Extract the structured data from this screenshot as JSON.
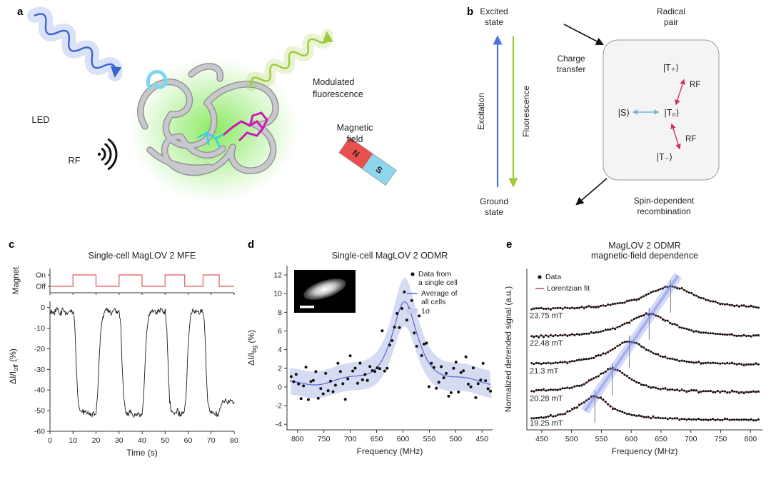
{
  "panel_labels": {
    "a": "a",
    "b": "b",
    "c": "c",
    "d": "d",
    "e": "e"
  },
  "panel_a": {
    "led_label": "LED",
    "rf_label": "RF",
    "fluorescence_label_line1": "Modulated",
    "fluorescence_label_line2": "fluorescence",
    "magnet_label_line1": "Magnetic",
    "magnet_label_line2": "field",
    "magnet_pole_n": "N",
    "magnet_pole_s": "S",
    "colors": {
      "led_arrow": "#3a63d2",
      "fluorescence_arrow": "#9ccb3b",
      "glow": "#84ea52",
      "rf_icon": "#111111",
      "magnet_n": "#e8504b",
      "magnet_s": "#8ed6ee",
      "protein_ribbon": "#c9c9cd",
      "ligand_magenta": "#c81ab4",
      "ligand_cyan": "#35cfe3"
    }
  },
  "panel_b": {
    "excited_state_line1": "Excited",
    "excited_state_line2": "state",
    "ground_state_line1": "Ground",
    "ground_state_line2": "state",
    "excitation_label": "Excitation",
    "fluorescence_label": "Fluorescence",
    "charge_transfer_line1": "Charge",
    "charge_transfer_line2": "transfer",
    "radical_pair_line1": "Radical",
    "radical_pair_line2": "pair",
    "spin_recomb_line1": "Spin-dependent",
    "spin_recomb_line2": "recombination",
    "state_t_plus": "|T₊⟩",
    "state_s": "|S⟩",
    "state_t_zero": "|T₀⟩",
    "state_t_minus": "|T₋⟩",
    "rf_label_upper": "RF",
    "rf_label_lower": "RF",
    "colors": {
      "excitation": "#4b74d8",
      "fluorescence": "#9ccb3b",
      "rf": "#cc3366",
      "singlet_triplet_arrow": "#74b6dc",
      "box_fill": "#f4f4f4",
      "box_border": "#9a9a9a"
    }
  },
  "chart_data": [
    {
      "id": "panel_c",
      "type": "line",
      "title": "Single-cell MagLOV 2 MFE",
      "xlabel": "Time (s)",
      "ylabel": "ΔI/I",
      "ylabel_sub": "off",
      "ylabel_suffix": " (%)",
      "xlim": [
        0,
        80
      ],
      "ylim": [
        -60,
        3
      ],
      "xticks": [
        0,
        10,
        20,
        30,
        40,
        50,
        60,
        70,
        80
      ],
      "yticks": [
        0,
        -10,
        -20,
        -30,
        -40,
        -50,
        -60
      ],
      "magnet": {
        "axis_label": "Magnet",
        "on_label": "On",
        "off_label": "Off",
        "on_intervals": [
          [
            10,
            20
          ],
          [
            30,
            40
          ],
          [
            50,
            58.5
          ],
          [
            66.5,
            73.5
          ]
        ],
        "color": "#e87070"
      },
      "trace": {
        "color": "#1c1c1c",
        "noise_sigma": 0.8,
        "seed": 3,
        "keypoints": [
          [
            0,
            -1.5
          ],
          [
            1.5,
            -3
          ],
          [
            3,
            -1
          ],
          [
            4.5,
            -3.5
          ],
          [
            6,
            -1.5
          ],
          [
            7.5,
            -3
          ],
          [
            9,
            -1
          ],
          [
            10,
            -1.5
          ],
          [
            10.7,
            -6
          ],
          [
            11.3,
            -24
          ],
          [
            12,
            -43
          ],
          [
            12.7,
            -49
          ],
          [
            13.5,
            -51
          ],
          [
            15,
            -50.5
          ],
          [
            16.5,
            -52
          ],
          [
            18,
            -51
          ],
          [
            19.2,
            -52.5
          ],
          [
            20,
            -51
          ],
          [
            20.7,
            -42
          ],
          [
            21.4,
            -24
          ],
          [
            22.1,
            -10
          ],
          [
            22.8,
            -4
          ],
          [
            23.6,
            -2
          ],
          [
            25,
            -1
          ],
          [
            26.5,
            -2.5
          ],
          [
            28,
            -1
          ],
          [
            29.3,
            -2.5
          ],
          [
            30,
            -2
          ],
          [
            30.7,
            -7
          ],
          [
            31.3,
            -26
          ],
          [
            32,
            -44
          ],
          [
            32.7,
            -50
          ],
          [
            33.5,
            -51.5
          ],
          [
            35,
            -51
          ],
          [
            36.5,
            -52.5
          ],
          [
            38,
            -51.5
          ],
          [
            39.2,
            -52
          ],
          [
            40,
            -51.5
          ],
          [
            40.7,
            -43
          ],
          [
            41.4,
            -25
          ],
          [
            42.1,
            -11
          ],
          [
            42.8,
            -4.5
          ],
          [
            43.6,
            -2
          ],
          [
            45,
            -1.5
          ],
          [
            46.5,
            -3
          ],
          [
            48,
            -1
          ],
          [
            49.3,
            -2
          ],
          [
            50,
            -1.5
          ],
          [
            50.7,
            -8
          ],
          [
            51.3,
            -27
          ],
          [
            52,
            -45
          ],
          [
            52.7,
            -50
          ],
          [
            53.5,
            -51
          ],
          [
            55,
            -50.5
          ],
          [
            56.5,
            -52
          ],
          [
            57.7,
            -51
          ],
          [
            58.5,
            -50.5
          ],
          [
            59.2,
            -41
          ],
          [
            59.9,
            -22
          ],
          [
            60.6,
            -9
          ],
          [
            61.3,
            -3.5
          ],
          [
            62.2,
            -2
          ],
          [
            63.5,
            -1
          ],
          [
            65,
            -2.5
          ],
          [
            66.5,
            -1.5
          ],
          [
            67.2,
            -9
          ],
          [
            67.8,
            -28
          ],
          [
            68.5,
            -45
          ],
          [
            69.2,
            -50
          ],
          [
            70,
            -51.5
          ],
          [
            71.5,
            -51
          ],
          [
            73,
            -52
          ],
          [
            73.5,
            -50.5
          ],
          [
            74.2,
            -47.5
          ],
          [
            75,
            -46
          ],
          [
            76.2,
            -45
          ],
          [
            77.4,
            -46.5
          ],
          [
            78.6,
            -45
          ],
          [
            80,
            -46
          ]
        ]
      }
    },
    {
      "id": "panel_d",
      "type": "scatter_line_band",
      "title": "Single-cell MagLOV 2 ODMR",
      "xlabel": "Frequency (MHz)",
      "ylabel": "ΔI/I",
      "ylabel_sub": "bg",
      "ylabel_suffix": " (%)",
      "x_reversed": true,
      "xlim": [
        820,
        430
      ],
      "ylim": [
        -4.6,
        13
      ],
      "xticks": [
        800,
        750,
        700,
        650,
        600,
        550,
        500,
        450
      ],
      "yticks": [
        -4,
        -2,
        0,
        2,
        4,
        6,
        8,
        10,
        12
      ],
      "mean_fit": {
        "center_mhz": 597,
        "hwhm_mhz": 30,
        "amplitude_pct": 8.7,
        "baseline_pct": 0.2
      },
      "mean_wiggle": {
        "amplitude_pct": 0.25,
        "period_mhz": 18
      },
      "sigma_band": {
        "baseline_pct": 1.4,
        "peak_extra_pct": 1.2
      },
      "scatter": {
        "n_points": 82,
        "noise_sigma_pct": 1.25,
        "seed": 11,
        "color": "#111111",
        "radius": 2
      },
      "mean_color": "#5a63d8",
      "band_color": "#c7d0ee",
      "legend": [
        {
          "label_line1": "Data from",
          "label_line2": "a single cell",
          "marker": "dot"
        },
        {
          "label_line1": "Average of",
          "label_line2": "all cells",
          "marker": "line"
        },
        {
          "label_line1": "1σ",
          "label_line2": "",
          "marker": "band"
        }
      ],
      "inset": {
        "description": "fluorescence image of a single cell",
        "has_scalebar": true
      }
    },
    {
      "id": "panel_e",
      "type": "stacked_odmr",
      "title_line1": "MagLOV 2 ODMR",
      "title_line2": "magnetic-field dependence",
      "xlabel": "Frequency (MHz)",
      "ylabel": "Normalized detrended signal (a.u.)",
      "xlim": [
        425,
        820
      ],
      "xticks": [
        450,
        500,
        550,
        600,
        650,
        700,
        750,
        800
      ],
      "traces": [
        {
          "field_label": "19.25 mT",
          "center_mhz": 539,
          "hwhm_mhz": 33,
          "amplitude": 0.85,
          "offset": 0
        },
        {
          "field_label": "20.28 mT",
          "center_mhz": 568,
          "hwhm_mhz": 37,
          "amplitude": 0.85,
          "offset": 1
        },
        {
          "field_label": "21.3 mT",
          "center_mhz": 597,
          "hwhm_mhz": 41,
          "amplitude": 0.85,
          "offset": 2
        },
        {
          "field_label": "22.48 mT",
          "center_mhz": 630,
          "hwhm_mhz": 47,
          "amplitude": 0.85,
          "offset": 3
        },
        {
          "field_label": "23.75 mT",
          "center_mhz": 666,
          "hwhm_mhz": 53,
          "amplitude": 0.85,
          "offset": 4
        }
      ],
      "data_color": "#111111",
      "fit_color": "#b0494f",
      "trend_band_color": "rgba(110,130,230,0.30)",
      "trend_core_color": "rgba(110,130,230,0.45)",
      "noise_sigma": 0.02,
      "seed": 7,
      "legend": [
        {
          "label": "Data",
          "marker": "dot"
        },
        {
          "label": "Lorentzian fit",
          "marker": "line"
        }
      ]
    }
  ]
}
